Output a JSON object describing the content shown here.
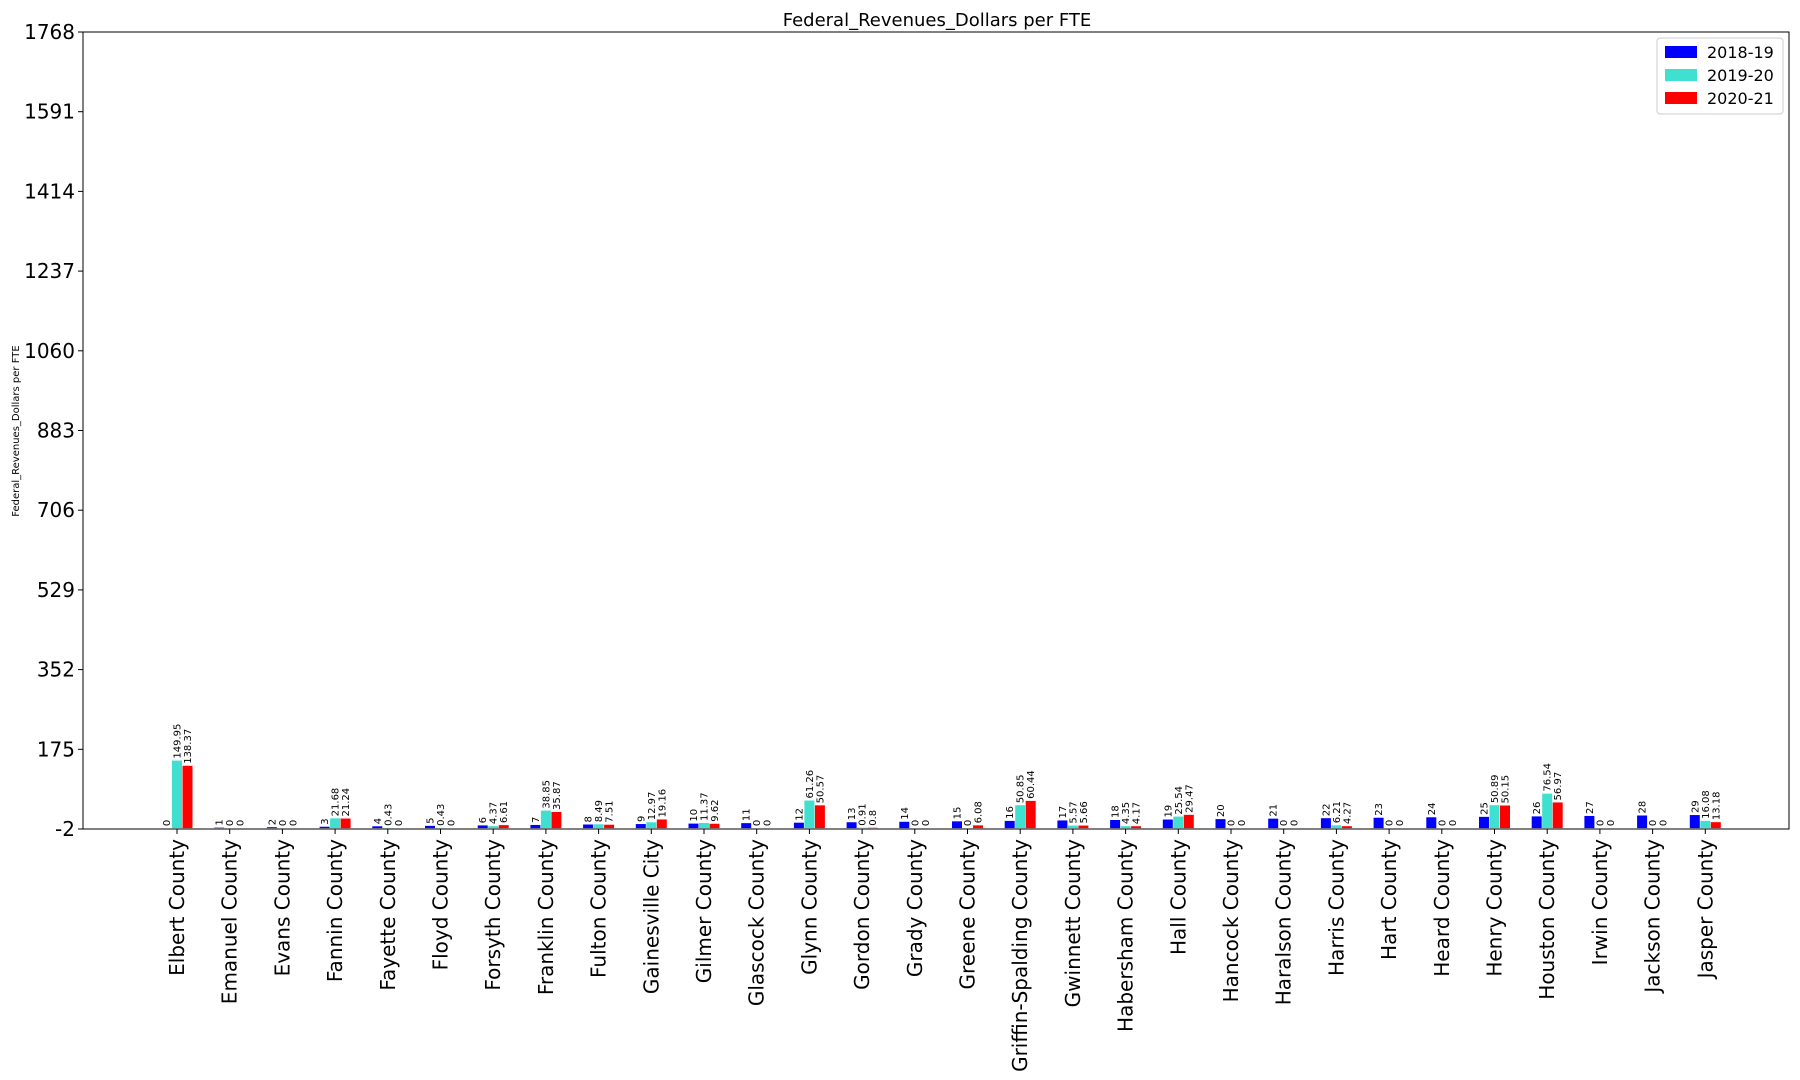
{
  "chart_data": {
    "type": "bar",
    "title": "Federal_Revenues_Dollars per FTE",
    "xlabel": "",
    "ylabel": "Federal_Revenues_Dollars per FTE",
    "ylim": [
      -2,
      1768
    ],
    "yticks": [
      -2,
      175,
      352,
      529,
      706,
      883,
      1060,
      1237,
      1414,
      1591,
      1768
    ],
    "grid": false,
    "legend_position": "top-right",
    "categories": [
      "Elbert County",
      "Emanuel County",
      "Evans County",
      "Fannin County",
      "Fayette County",
      "Floyd County",
      "Forsyth County",
      "Franklin County",
      "Fulton County",
      "Gainesville City",
      "Gilmer County",
      "Glascock County",
      "Glynn County",
      "Gordon County",
      "Grady County",
      "Greene County",
      "Griffin-Spalding County",
      "Gwinnett County",
      "Habersham County",
      "Hall County",
      "Hancock County",
      "Haralson County",
      "Harris County",
      "Hart County",
      "Heard County",
      "Henry County",
      "Houston County",
      "Irwin County",
      "Jackson County",
      "Jasper County"
    ],
    "series": [
      {
        "name": "2018-19",
        "color": "#0000ff",
        "values": [
          0.0,
          1.0,
          2.0,
          3.0,
          4.0,
          5.0,
          6.0,
          7.0,
          8.0,
          9.0,
          10.0,
          11.0,
          12.0,
          13.0,
          14.0,
          15.0,
          16.0,
          17.0,
          18.0,
          19.0,
          20.0,
          21.0,
          22.0,
          23.0,
          24.0,
          25.0,
          26.0,
          27.0,
          28.0,
          29.0
        ]
      },
      {
        "name": "2019-20",
        "color": "#40e0d0",
        "values": [
          149.95,
          0.0,
          0.0,
          21.68,
          0.43,
          0.43,
          4.37,
          38.85,
          8.49,
          12.97,
          11.37,
          0.0,
          61.26,
          0.91,
          0.0,
          0.0,
          50.85,
          5.57,
          4.35,
          25.54,
          0.0,
          0.0,
          6.21,
          0.0,
          0.0,
          50.89,
          76.54,
          0.0,
          0.0,
          16.08
        ]
      },
      {
        "name": "2020-21",
        "color": "#ff0000",
        "values": [
          138.37,
          0.0,
          0.0,
          21.24,
          0.0,
          0.0,
          6.61,
          35.87,
          7.51,
          19.16,
          9.62,
          0.0,
          50.57,
          0.8,
          0.0,
          6.08,
          60.44,
          5.66,
          4.17,
          29.47,
          0.0,
          0.0,
          4.27,
          0.0,
          0.0,
          50.15,
          56.97,
          0.0,
          0.0,
          13.18
        ]
      }
    ]
  }
}
